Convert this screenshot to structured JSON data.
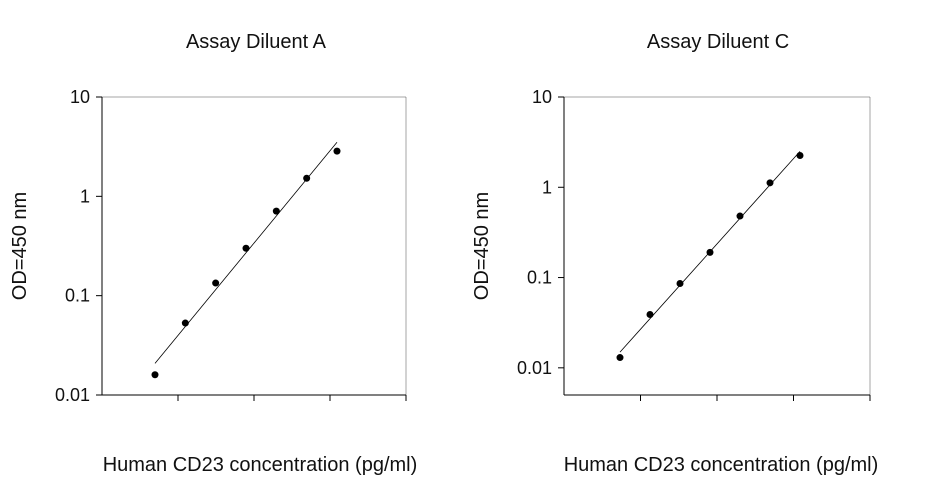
{
  "chart_data": [
    {
      "type": "scatter",
      "title": "Assay Diluent A",
      "xlabel": "Human CD23 concentration (pg/ml)",
      "ylabel": "OD=450 nm",
      "yscale": "log",
      "ylim": [
        0.01,
        10
      ],
      "yticks": [
        "10",
        "1",
        "0.1",
        "0.01"
      ],
      "x_tick_count": 4,
      "grid": false,
      "x": [
        1,
        2,
        3,
        4,
        5,
        6,
        7
      ],
      "y": [
        0.016,
        0.053,
        0.134,
        0.3,
        0.71,
        1.52,
        2.85
      ],
      "trendline": true
    },
    {
      "type": "scatter",
      "title": "Assay Diluent C",
      "xlabel": "Human CD23 concentration (pg/ml)",
      "ylabel": "OD=450 nm",
      "yscale": "log",
      "ylim": [
        0.005,
        10
      ],
      "yticks": [
        "10",
        "1",
        "0.1",
        "0.01"
      ],
      "x_tick_count": 4,
      "grid": false,
      "x": [
        1,
        2,
        3,
        4,
        5,
        6,
        7
      ],
      "y": [
        0.013,
        0.039,
        0.086,
        0.19,
        0.48,
        1.12,
        2.25
      ],
      "trendline": true
    }
  ]
}
